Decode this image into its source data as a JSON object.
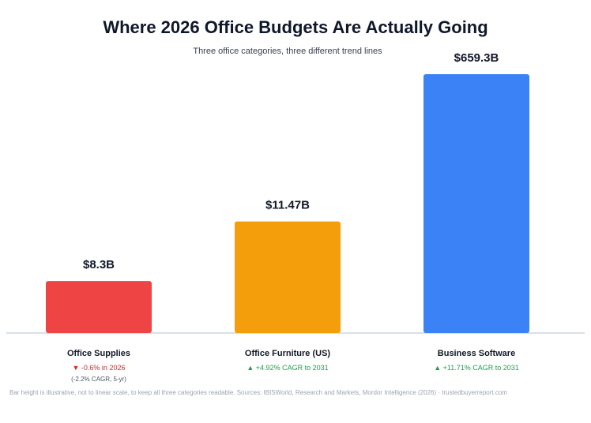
{
  "chart_data": {
    "type": "bar",
    "title": "Where 2026 Office Budgets Are Actually Going",
    "subtitle": "Three office categories, three different trend lines",
    "categories": [
      "Office Supplies",
      "Office Furniture (US)",
      "Business Software"
    ],
    "values": [
      8.3,
      11.47,
      659.3
    ],
    "value_labels": [
      "$8.3B",
      "$11.47B",
      "$659.3B"
    ],
    "display_heights": [
      0.201,
      0.431,
      1.0
    ],
    "colors": [
      "#ef4444",
      "#f59e0b",
      "#3b82f6"
    ],
    "scale": "illustrative, non-linear",
    "grid": false,
    "legend": "none"
  },
  "trends": [
    {
      "text": "▼ -0.6% in 2026",
      "direction": "down",
      "note": "(-2.2% CAGR, 5-yr)"
    },
    {
      "text": "▲ +4.92% CAGR to 2031",
      "direction": "up",
      "note": ""
    },
    {
      "text": "▲ +11.71% CAGR to 2031",
      "direction": "up",
      "note": ""
    }
  ],
  "footer": "Bar height is illustrative, not to linear scale, to keep all three categories readable. Sources: IBISWorld, Research and Markets, Mordor Intelligence (2026) · trustedbuyerreport.com",
  "colors": {
    "baseline": "#cbd5e1",
    "label": "#111827"
  }
}
